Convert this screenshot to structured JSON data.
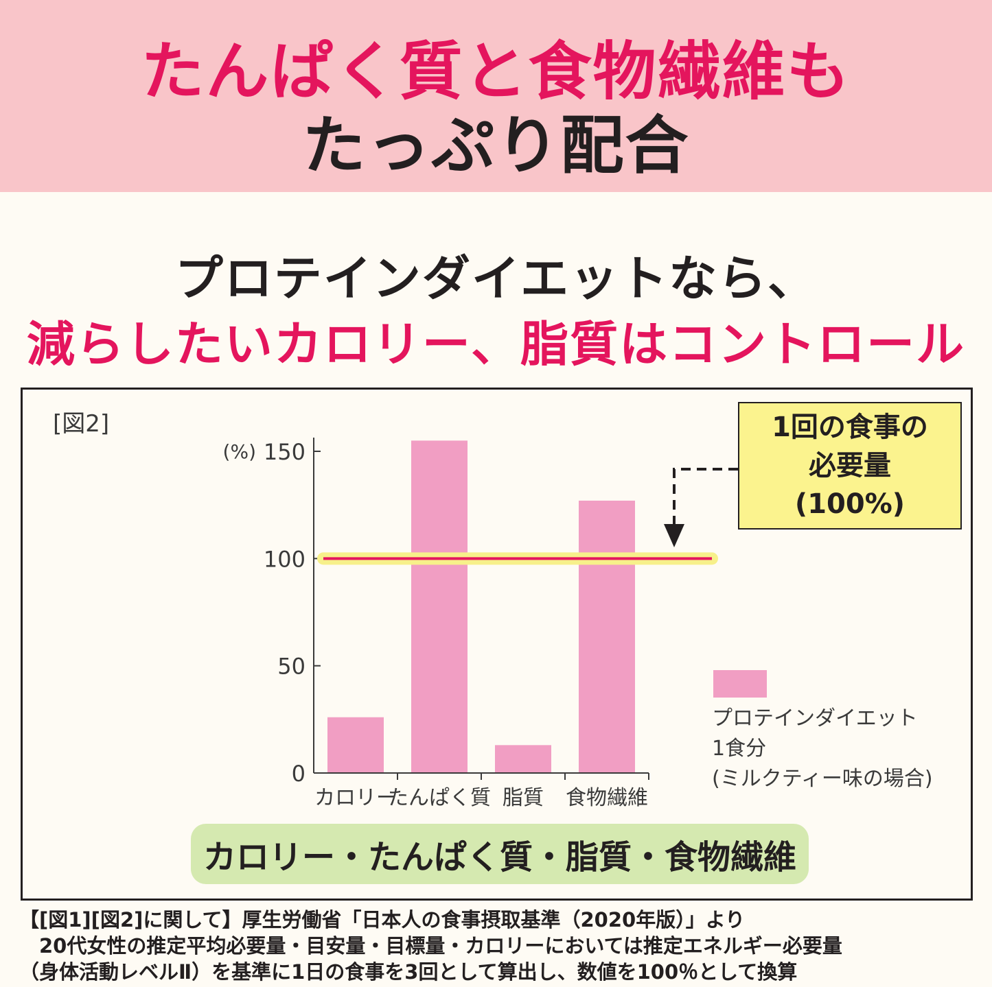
{
  "header": {
    "line1": "たんぱく質と食物繊維も",
    "line2": "たっぷり配合"
  },
  "subheading": {
    "line1": "プロテインダイエットなら、",
    "line2": "減らしたいカロリー、脂質はコントロール"
  },
  "figure": {
    "label": "[図2]",
    "callout": [
      "1回の食事の",
      "必要量",
      "(100%)"
    ],
    "legend": [
      "プロテインダイエット",
      "1食分",
      "(ミルクティー味の場合)"
    ],
    "caption": "カロリー・たんぱく質・脂質・食物繊維"
  },
  "chart_data": {
    "type": "bar",
    "categories": [
      "カロリー",
      "たんぱく質",
      "脂質",
      "食物繊維"
    ],
    "values": [
      26,
      155,
      13,
      127
    ],
    "yunit": "(%)",
    "ylim": [
      0,
      150
    ],
    "yticks": [
      0,
      50,
      100,
      150
    ],
    "reference_line": 100,
    "colors": {
      "bar": "#f19ec3",
      "reference": "#e4155d",
      "highlight": "#f7f08a"
    }
  },
  "footnote": [
    "【[図1][図2]に関して】厚生労働省「日本人の食事摂取基準（2020年版）」より",
    "　20代女性の推定平均必要量・目安量・目標量・カロリーにおいては推定エネルギー必要量",
    "（身体活動レベルⅡ）を基準に1日の食事を3回として算出し、数値を100％として換算"
  ]
}
